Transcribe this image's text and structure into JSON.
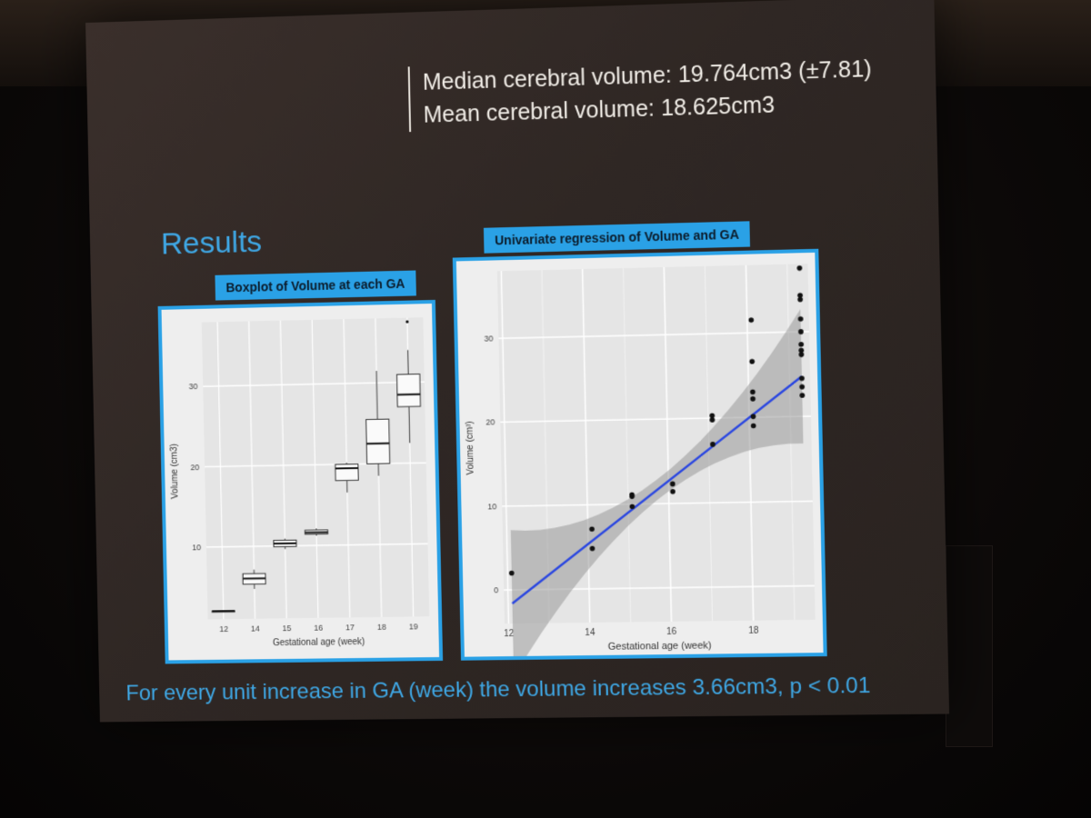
{
  "slide": {
    "stat_line_1": "Median cerebral volume: 19.764cm3 (±7.81)",
    "stat_line_2": "Mean cerebral volume: 18.625cm3",
    "section_title": "Results",
    "footnote": "For every unit increase in GA (week) the volume increases 3.66cm3, p < 0.01"
  },
  "chart_data": [
    {
      "type": "box",
      "title": "Boxplot of Volume at each GA",
      "xlabel": "Gestational age (week)",
      "ylabel": "Volume (cm3)",
      "ylim": [
        1,
        38
      ],
      "yticks": [
        10,
        20,
        30
      ],
      "categories": [
        "12",
        "14",
        "15",
        "16",
        "17",
        "18",
        "19"
      ],
      "boxes": [
        {
          "category": "12",
          "min": 2.0,
          "q1": 2.0,
          "median": 2.0,
          "q3": 2.0,
          "max": 2.0,
          "outliers": []
        },
        {
          "category": "14",
          "min": 4.7,
          "q1": 5.3,
          "median": 6.0,
          "q3": 6.6,
          "max": 7.1,
          "outliers": []
        },
        {
          "category": "15",
          "min": 9.6,
          "q1": 9.9,
          "median": 10.3,
          "q3": 10.7,
          "max": 10.9,
          "outliers": []
        },
        {
          "category": "16",
          "min": 11.2,
          "q1": 11.4,
          "median": 11.6,
          "q3": 11.9,
          "max": 12.1,
          "outliers": []
        },
        {
          "category": "17",
          "min": 16.5,
          "q1": 18.0,
          "median": 19.5,
          "q3": 20.0,
          "max": 20.2,
          "outliers": []
        },
        {
          "category": "18",
          "min": 18.5,
          "q1": 20.0,
          "median": 22.5,
          "q3": 25.5,
          "max": 31.5,
          "outliers": []
        },
        {
          "category": "19",
          "min": 22.5,
          "q1": 27.0,
          "median": 28.5,
          "q3": 31.0,
          "max": 34.0,
          "outliers": [
            37.5
          ]
        }
      ]
    },
    {
      "type": "scatter",
      "title": "Univariate regression of Volume and GA",
      "xlabel": "Gestational age (week)",
      "ylabel": "Volume (cm³)",
      "xlim": [
        11.9,
        19.5
      ],
      "ylim": [
        -4,
        38
      ],
      "xticks": [
        12,
        14,
        16,
        18
      ],
      "yticks": [
        0,
        10,
        20,
        30
      ],
      "points": [
        [
          12.1,
          2.0
        ],
        [
          14.1,
          7.1
        ],
        [
          14.1,
          4.8
        ],
        [
          15.1,
          11.1
        ],
        [
          15.1,
          10.9
        ],
        [
          15.1,
          9.7
        ],
        [
          16.1,
          12.3
        ],
        [
          16.1,
          11.4
        ],
        [
          17.1,
          20.3
        ],
        [
          17.1,
          19.8
        ],
        [
          17.1,
          16.9
        ],
        [
          18.1,
          31.5
        ],
        [
          18.1,
          26.6
        ],
        [
          18.1,
          23.0
        ],
        [
          18.1,
          22.2
        ],
        [
          18.1,
          20.1
        ],
        [
          18.1,
          19.0
        ],
        [
          19.3,
          37.5
        ],
        [
          19.3,
          34.3
        ],
        [
          19.3,
          33.8
        ],
        [
          19.3,
          31.5
        ],
        [
          19.3,
          30.0
        ],
        [
          19.3,
          28.5
        ],
        [
          19.3,
          27.8
        ],
        [
          19.3,
          27.3
        ],
        [
          19.3,
          24.5
        ],
        [
          19.3,
          23.5
        ],
        [
          19.3,
          22.5
        ]
      ],
      "regression": {
        "slope": 3.66,
        "intercept": -45.9,
        "x_range": [
          12.1,
          19.3
        ],
        "color": "#2b47e0"
      }
    }
  ]
}
